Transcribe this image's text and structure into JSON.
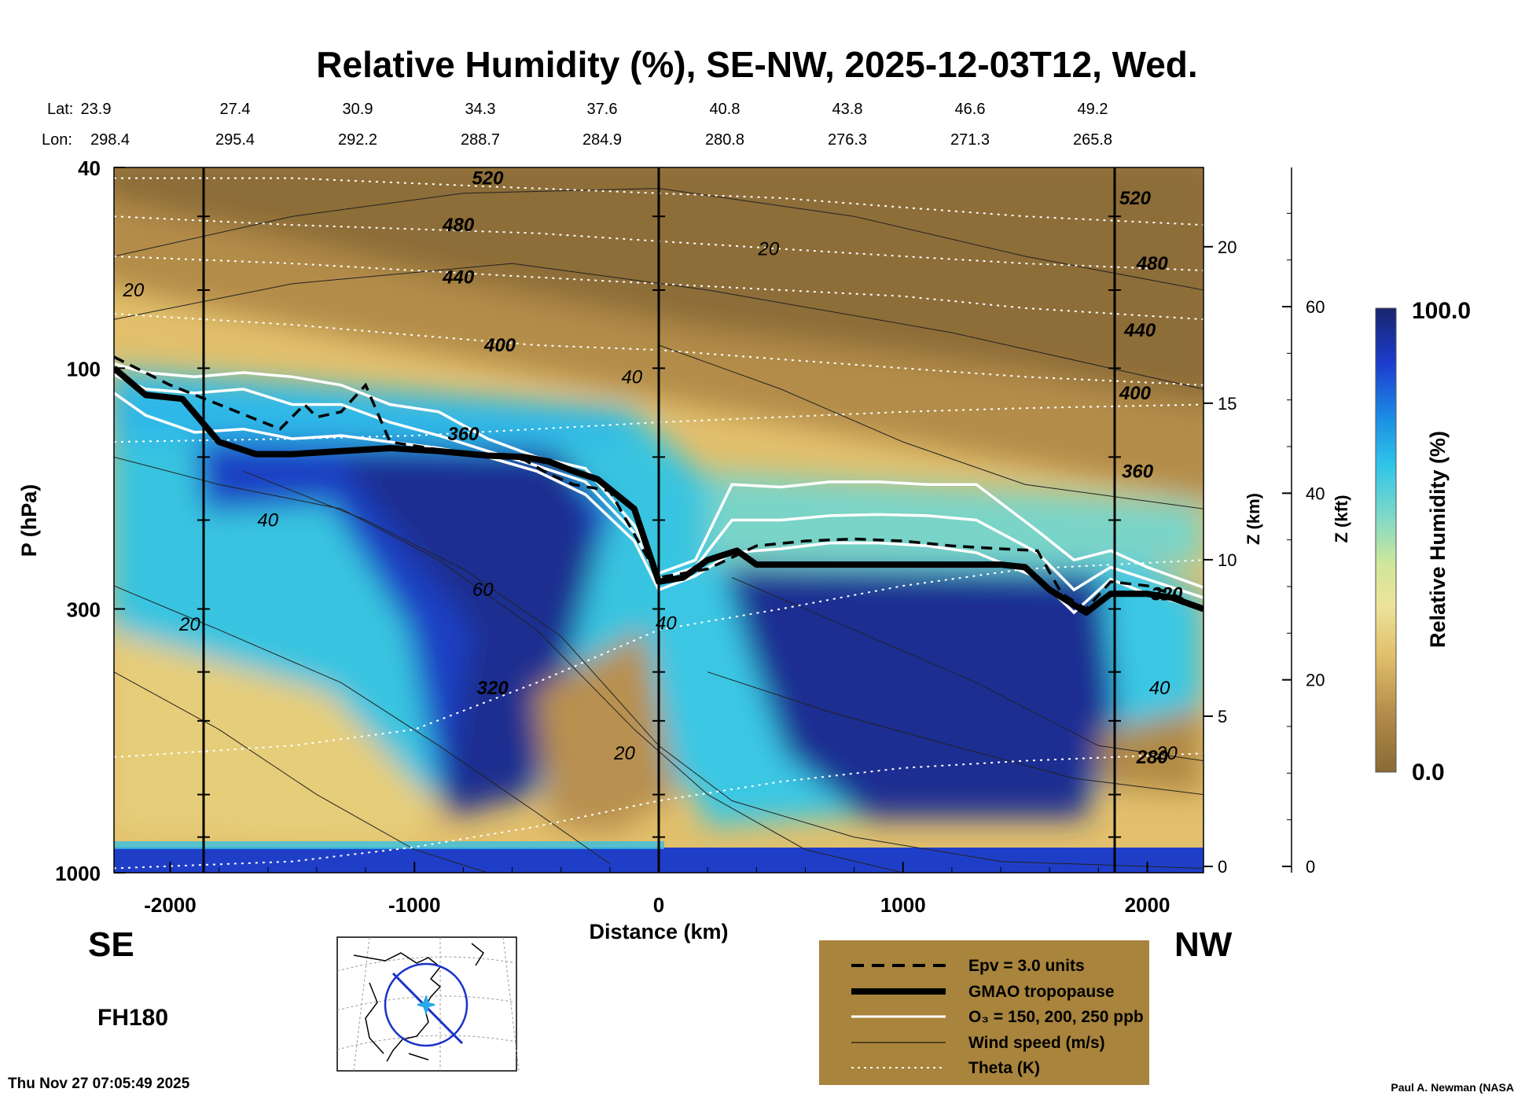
{
  "title": "Relative Humidity (%), SE-NW, 2025-12-03T12, Wed.",
  "lat_label": "Lat:",
  "lon_label": "Lon:",
  "lat_values": [
    "23.9",
    "27.4",
    "30.9",
    "34.3",
    "37.6",
    "40.8",
    "43.8",
    "46.6",
    "49.2"
  ],
  "lon_values": [
    "298.4",
    "295.4",
    "292.2",
    "288.7",
    "284.9",
    "280.8",
    "276.3",
    "271.3",
    "265.8"
  ],
  "direction_left": "SE",
  "direction_right": "NW",
  "forecast_hour": "FH180",
  "timestamp": "Thu Nov 27 07:05:49 2025",
  "credit": "Paul A. Newman (NASA",
  "colorbar": {
    "max_label": "100.0",
    "min_label": "0.0",
    "label": "Relative Humidity (%)"
  },
  "legend": [
    {
      "label": "Epv = 3.0 units",
      "style": "dashed"
    },
    {
      "label": "GMAO tropopause",
      "style": "thick"
    },
    {
      "label": "O₃ = 150, 200, 250 ppb",
      "style": "white"
    },
    {
      "label": "Wind speed (m/s)",
      "style": "thin"
    },
    {
      "label": "Theta (K)",
      "style": "dotted"
    }
  ],
  "colors": {
    "dry": "#8a6a35",
    "moist": "#1c2f86",
    "legend_bg": "#a8843c"
  },
  "chart_data": {
    "type": "heatmap",
    "title": "Relative Humidity (%), SE-NW, 2025-12-03T12, Wed.",
    "xlabel": "Distance (km)",
    "ylabel": "P (hPa)",
    "z_label": "Z (km)",
    "z_kft_label": "Z (kft)",
    "xlim": [
      -2230,
      2230
    ],
    "ylim": [
      1000,
      40
    ],
    "y_scale": "log",
    "x_ticks": [
      -2000,
      -1000,
      0,
      1000,
      2000
    ],
    "x_tick_labels": [
      "-2000",
      "-1000",
      "0",
      "1000",
      "2000"
    ],
    "y_ticks": [
      40,
      100,
      300,
      1000
    ],
    "y_tick_labels": [
      "40",
      "100",
      "300",
      "1000"
    ],
    "z_km_ticks": [
      0,
      5,
      10,
      15,
      20
    ],
    "z_kft_ticks": [
      0,
      20,
      40,
      60
    ],
    "colorbar_range": [
      0,
      100
    ],
    "tropopause": {
      "x": [
        -2230,
        -2100,
        -1950,
        -1800,
        -1650,
        -1500,
        -1300,
        -1100,
        -900,
        -700,
        -550,
        -450,
        -350,
        -250,
        -100,
        0,
        100,
        200,
        320,
        400,
        600,
        800,
        1000,
        1200,
        1400,
        1500,
        1600,
        1750,
        1850,
        2000,
        2100,
        2230
      ],
      "p": [
        100,
        113,
        115,
        140,
        148,
        148,
        146,
        144,
        146,
        149,
        150,
        153,
        160,
        166,
        190,
        265,
        260,
        240,
        230,
        245,
        245,
        245,
        245,
        245,
        245,
        248,
        275,
        305,
        280,
        280,
        285,
        300
      ]
    },
    "epv": {
      "x": [
        -2230,
        -2000,
        -1800,
        -1550,
        -1450,
        -1400,
        -1300,
        -1200,
        -1100,
        -900,
        -700,
        -550,
        -450,
        -350,
        -200,
        0,
        200,
        400,
        600,
        800,
        1000,
        1200,
        1400,
        1550,
        1650,
        1750,
        1850,
        2000,
        2100,
        2230
      ],
      "p": [
        95,
        108,
        118,
        132,
        118,
        125,
        122,
        108,
        140,
        145,
        148,
        152,
        162,
        170,
        175,
        260,
        250,
        225,
        220,
        218,
        220,
        225,
        228,
        230,
        280,
        300,
        265,
        270,
        280,
        300
      ]
    },
    "ozone_contours": [
      {
        "ppb": 150,
        "x": [
          -2230,
          -2100,
          -1900,
          -1700,
          -1500,
          -1300,
          -1100,
          -900,
          -700,
          -500,
          -300,
          -100,
          0,
          150,
          300,
          500,
          700,
          900,
          1100,
          1300,
          1550,
          1700,
          1850,
          2000,
          2230
        ],
        "p": [
          98,
          102,
          104,
          102,
          104,
          108,
          118,
          122,
          138,
          150,
          158,
          205,
          255,
          240,
          170,
          172,
          168,
          168,
          170,
          170,
          210,
          240,
          230,
          248,
          272
        ]
      },
      {
        "ppb": 200,
        "x": [
          -2230,
          -2100,
          -1900,
          -1700,
          -1500,
          -1300,
          -1100,
          -900,
          -700,
          -500,
          -300,
          -100,
          0,
          150,
          300,
          500,
          700,
          900,
          1100,
          1300,
          1550,
          1700,
          1850,
          2000,
          2230
        ],
        "p": [
          103,
          110,
          112,
          110,
          118,
          118,
          128,
          136,
          146,
          156,
          168,
          212,
          262,
          248,
          200,
          200,
          196,
          195,
          196,
          200,
          232,
          275,
          248,
          262,
          285
        ]
      },
      {
        "ppb": 250,
        "x": [
          -2230,
          -2100,
          -1900,
          -1700,
          -1500,
          -1300,
          -1100,
          -900,
          -700,
          -500,
          -300,
          -100,
          0,
          150,
          300,
          500,
          700,
          900,
          1100,
          1300,
          1550,
          1700,
          1850,
          2000,
          2230
        ],
        "p": [
          112,
          124,
          134,
          132,
          138,
          136,
          140,
          144,
          150,
          160,
          178,
          220,
          275,
          258,
          232,
          228,
          222,
          222,
          225,
          232,
          260,
          305,
          262,
          280,
          300
        ]
      }
    ],
    "theta_contours": [
      {
        "K": 280,
        "x": [
          -2230,
          -1500,
          -1000,
          -500,
          0,
          500,
          1000,
          1500,
          2230
        ],
        "p": [
          980,
          950,
          890,
          810,
          720,
          660,
          620,
          600,
          580
        ]
      },
      {
        "K": 320,
        "x": [
          -2230,
          -1500,
          -1000,
          -500,
          0,
          500,
          1000,
          1500,
          2230
        ],
        "p": [
          590,
          560,
          520,
          420,
          330,
          300,
          270,
          250,
          240
        ]
      },
      {
        "K": 360,
        "x": [
          -2230,
          -1500,
          -1000,
          -500,
          0,
          500,
          1000,
          1500,
          2230
        ],
        "p": [
          140,
          138,
          136,
          132,
          128,
          125,
          122,
          120,
          118
        ]
      },
      {
        "K": 400,
        "x": [
          -2230,
          -1500,
          -1000,
          -500,
          0,
          500,
          1000,
          1500,
          2230
        ],
        "p": [
          78,
          82,
          86,
          90,
          92,
          96,
          100,
          104,
          108
        ]
      },
      {
        "K": 440,
        "x": [
          -2230,
          -1500,
          -1000,
          -500,
          0,
          500,
          1000,
          1500,
          2230
        ],
        "p": [
          60,
          62,
          64,
          66,
          68,
          70,
          72,
          76,
          80
        ]
      },
      {
        "K": 480,
        "x": [
          -2230,
          -1500,
          -1000,
          -500,
          0,
          500,
          1000,
          1500,
          2230
        ],
        "p": [
          50,
          52,
          53,
          54,
          56,
          58,
          60,
          62,
          64
        ]
      },
      {
        "K": 520,
        "x": [
          -2230,
          -1500,
          -1000,
          -500,
          0,
          500,
          1000,
          1500,
          2230
        ],
        "p": [
          42,
          42,
          43,
          44,
          45,
          46,
          48,
          50,
          52
        ]
      }
    ],
    "contour_labels": [
      {
        "text": "520",
        "kind": "theta",
        "x": -700,
        "p": 42
      },
      {
        "text": "480",
        "kind": "theta",
        "x": -820,
        "p": 52
      },
      {
        "text": "440",
        "kind": "theta",
        "x": -820,
        "p": 66
      },
      {
        "text": "400",
        "kind": "theta",
        "x": -650,
        "p": 90
      },
      {
        "text": "360",
        "kind": "theta",
        "x": -800,
        "p": 135
      },
      {
        "text": "320",
        "kind": "theta",
        "x": -680,
        "p": 430
      },
      {
        "text": "520",
        "kind": "theta",
        "x": 1950,
        "p": 46
      },
      {
        "text": "480",
        "kind": "theta",
        "x": 2020,
        "p": 62
      },
      {
        "text": "440",
        "kind": "theta",
        "x": 1970,
        "p": 84
      },
      {
        "text": "400",
        "kind": "theta",
        "x": 1950,
        "p": 112
      },
      {
        "text": "360",
        "kind": "theta",
        "x": 1960,
        "p": 160
      },
      {
        "text": "320",
        "kind": "theta",
        "x": 2080,
        "p": 280
      },
      {
        "text": "280",
        "kind": "theta",
        "x": 2020,
        "p": 590
      },
      {
        "text": "20",
        "kind": "wind",
        "x": -2150,
        "p": 70
      },
      {
        "text": "20",
        "kind": "wind",
        "x": 450,
        "p": 58
      },
      {
        "text": "40",
        "kind": "wind",
        "x": -110,
        "p": 104
      },
      {
        "text": "40",
        "kind": "wind",
        "x": -1600,
        "p": 200
      },
      {
        "text": "60",
        "kind": "wind",
        "x": -720,
        "p": 275
      },
      {
        "text": "20",
        "kind": "wind",
        "x": -1920,
        "p": 322
      },
      {
        "text": "40",
        "kind": "wind",
        "x": 30,
        "p": 320
      },
      {
        "text": "20",
        "kind": "wind",
        "x": -140,
        "p": 580
      },
      {
        "text": "40",
        "kind": "wind",
        "x": 2050,
        "p": 430
      },
      {
        "text": "20",
        "kind": "wind",
        "x": 2080,
        "p": 580
      }
    ]
  }
}
